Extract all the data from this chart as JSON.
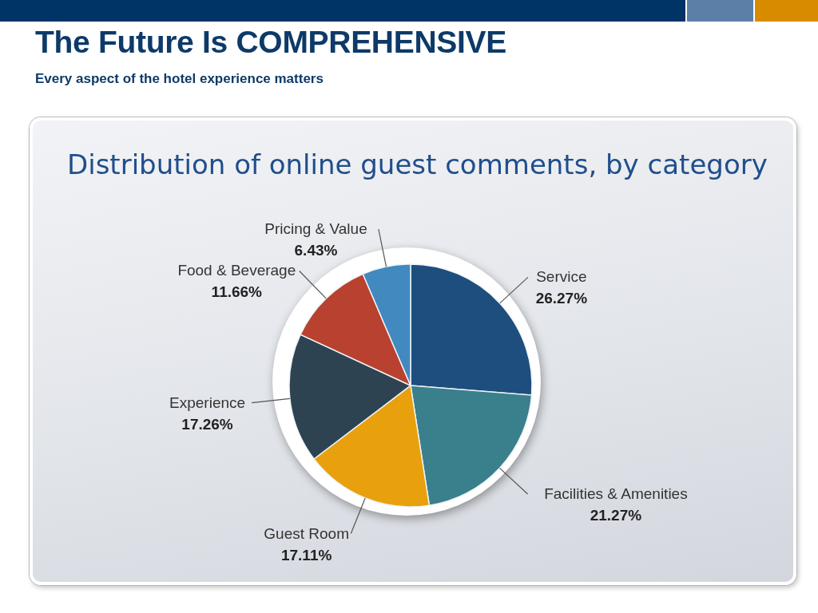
{
  "chart_data": {
    "type": "pie",
    "title": "The Future Is COMPREHENSIVE",
    "subtitle": "Every aspect of the hotel experience matters",
    "annotations": [
      "Distribution of online guest comments, by category"
    ],
    "categories": [
      "Service",
      "Facilities & Amenities",
      "Guest Room",
      "Experience",
      "Food & Beverage",
      "Pricing & Value"
    ],
    "values": [
      26.27,
      21.27,
      17.11,
      17.26,
      11.66,
      6.43
    ],
    "value_labels": [
      "26.27%",
      "21.27%",
      "17.11%",
      "17.26%",
      "11.66%",
      "6.43%"
    ],
    "colors": [
      "#1d4e7e",
      "#3a7f8c",
      "#e8a00c",
      "#2e4351",
      "#b9412f",
      "#4189bf"
    ]
  }
}
